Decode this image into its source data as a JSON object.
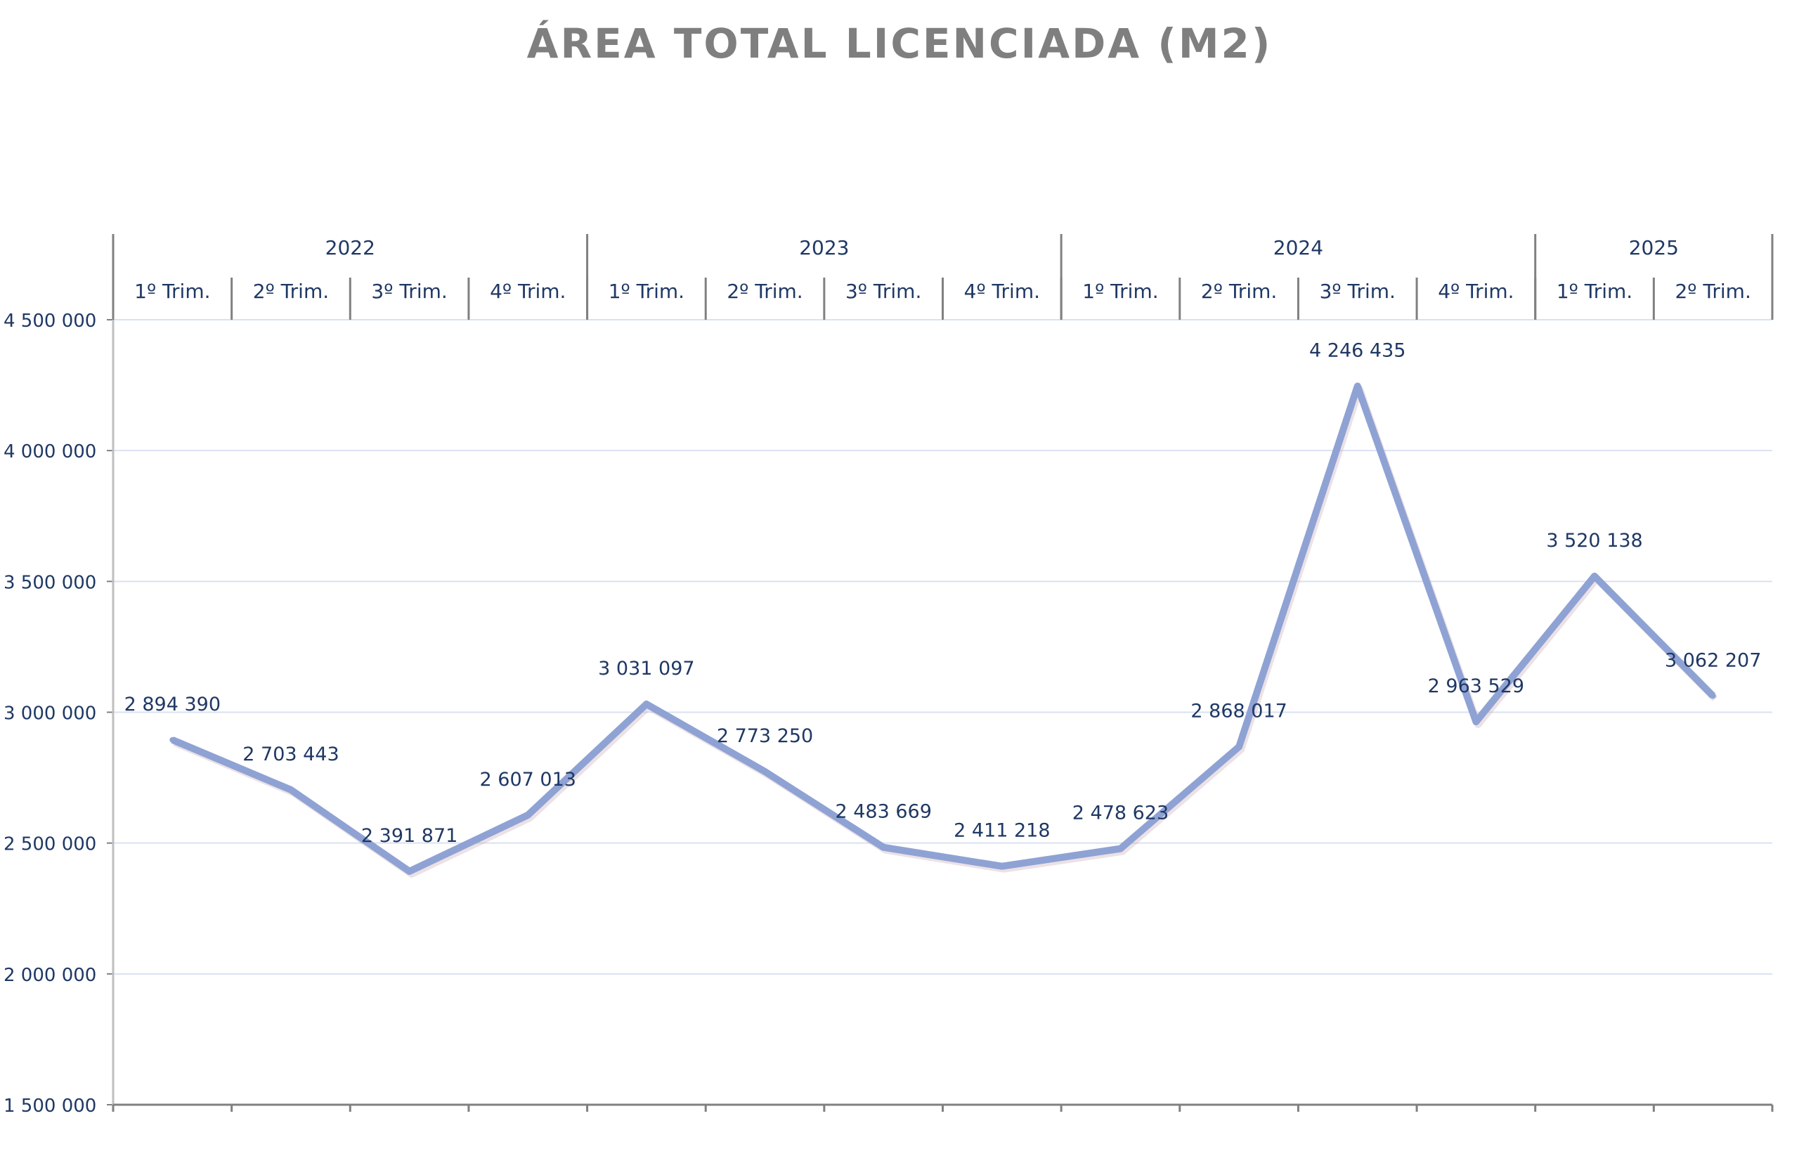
{
  "chart_data": {
    "type": "line",
    "title": "ÁREA TOTAL LICENCIADA (M2)",
    "xlabel": "",
    "ylabel": "",
    "ylim": [
      1500000,
      4500000
    ],
    "yticks": [
      1500000,
      2000000,
      2500000,
      3000000,
      3500000,
      4000000,
      4500000
    ],
    "ytick_labels": [
      "1 500 000",
      "2 000 000",
      "2 500 000",
      "3 000 000",
      "3 500 000",
      "4 000 000",
      "4 500 000"
    ],
    "grid": true,
    "legend": "none",
    "years": [
      {
        "label": "2022",
        "span": 4
      },
      {
        "label": "2023",
        "span": 4
      },
      {
        "label": "2024",
        "span": 4
      },
      {
        "label": "2025",
        "span": 2
      }
    ],
    "categories": [
      "1º Trim.",
      "2º Trim.",
      "3º Trim.",
      "4º Trim.",
      "1º Trim.",
      "2º Trim.",
      "3º Trim.",
      "4º Trim.",
      "1º Trim.",
      "2º Trim.",
      "3º Trim.",
      "4º Trim.",
      "1º Trim.",
      "2º Trim."
    ],
    "values": [
      2894390,
      2703443,
      2391871,
      2607013,
      3031097,
      2773250,
      2483669,
      2411218,
      2478623,
      2868017,
      4246435,
      2963529,
      3520138,
      3062207
    ],
    "value_labels": [
      "2 894 390",
      "2 703 443",
      "2 391 871",
      "2 607 013",
      "3 031 097",
      "2 773 250",
      "2 483 669",
      "2 411 218",
      "2 478 623",
      "2 868 017",
      "4 246 435",
      "2 963 529",
      "3 520 138",
      "3 062 207"
    ],
    "colors": {
      "line": "#8fa2d4",
      "shadow": "#c9a9b4",
      "text": "#1f3864",
      "title": "#7f7f7f",
      "grid": "#d9e1f2",
      "axis": "#808080"
    }
  }
}
